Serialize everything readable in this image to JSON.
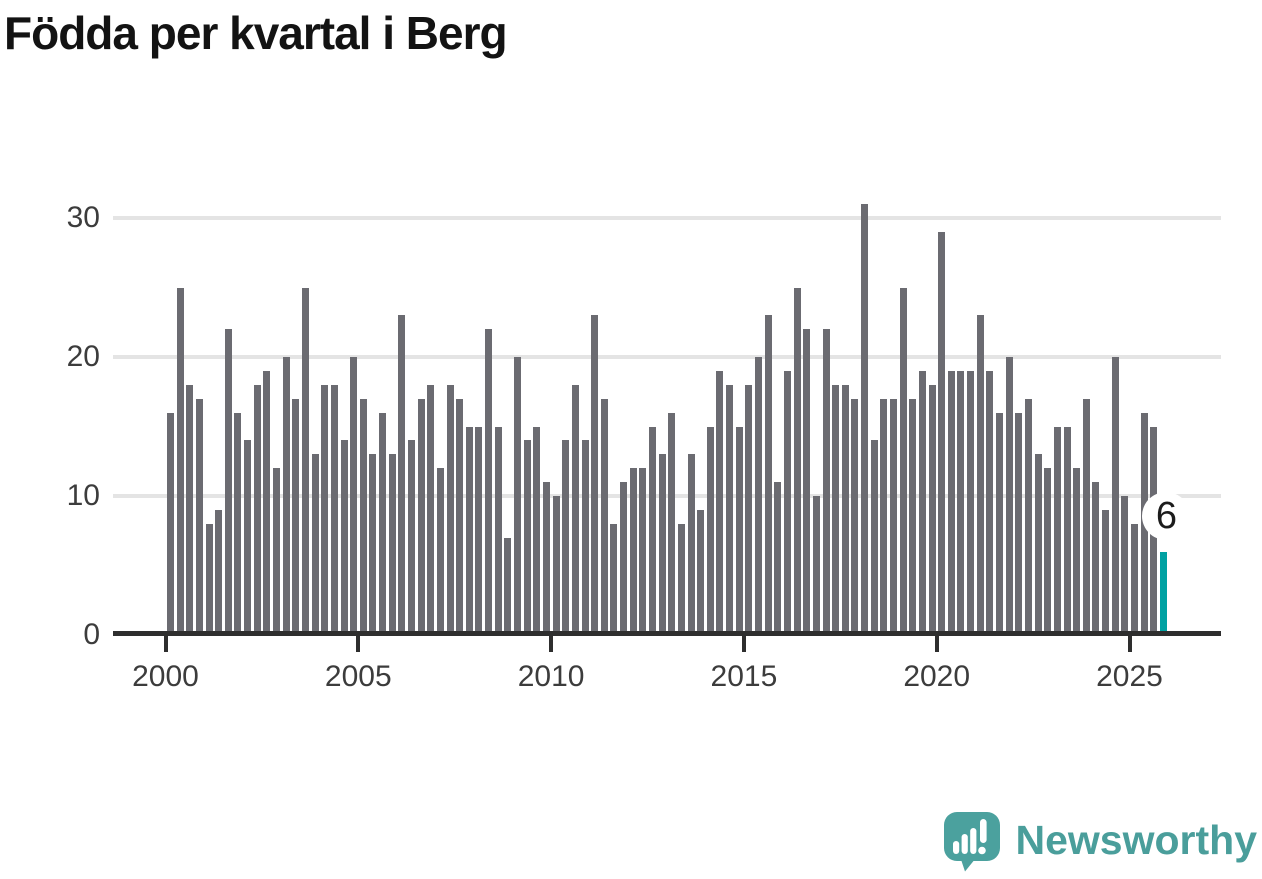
{
  "title": "Födda per kvartal i Berg",
  "annotation": {
    "last_value_label": "6"
  },
  "logo": {
    "text": "Newsworthy"
  },
  "colors": {
    "bar": "#6b6b71",
    "highlight": "#00a1a2",
    "axis": "#2e2e2e",
    "gridline": "#e4e4e4",
    "tick_label": "#3c3c3c",
    "title": "#131313",
    "value_label": "#1c1c1c",
    "logo_teal": "#4a9e9b"
  },
  "chart_data": {
    "type": "bar",
    "title": "Födda per kvartal i Berg",
    "xlabel": "",
    "ylabel": "",
    "frequency": "quarterly",
    "x_start": "2000 Q1",
    "x_end": "2025 Q4",
    "x_ticks": [
      "2000",
      "2005",
      "2010",
      "2015",
      "2020",
      "2025"
    ],
    "y_ticks": [
      0,
      10,
      20,
      30
    ],
    "ylim": [
      0,
      32
    ],
    "grid": "horizontal",
    "legend": "none",
    "highlight_last": true,
    "values": [
      16,
      25,
      18,
      17,
      8,
      9,
      22,
      16,
      14,
      18,
      19,
      12,
      20,
      17,
      25,
      13,
      18,
      18,
      14,
      20,
      17,
      13,
      16,
      13,
      23,
      14,
      17,
      18,
      12,
      18,
      17,
      15,
      15,
      22,
      15,
      7,
      20,
      14,
      15,
      11,
      10,
      14,
      18,
      14,
      23,
      17,
      8,
      11,
      12,
      12,
      15,
      13,
      16,
      8,
      13,
      9,
      15,
      19,
      18,
      15,
      18,
      20,
      23,
      11,
      19,
      25,
      22,
      10,
      22,
      18,
      18,
      17,
      31,
      14,
      17,
      17,
      25,
      17,
      19,
      18,
      29,
      19,
      19,
      19,
      23,
      19,
      16,
      20,
      16,
      17,
      13,
      12,
      15,
      15,
      12,
      17,
      11,
      9,
      20,
      10,
      8,
      16,
      15,
      6
    ]
  }
}
